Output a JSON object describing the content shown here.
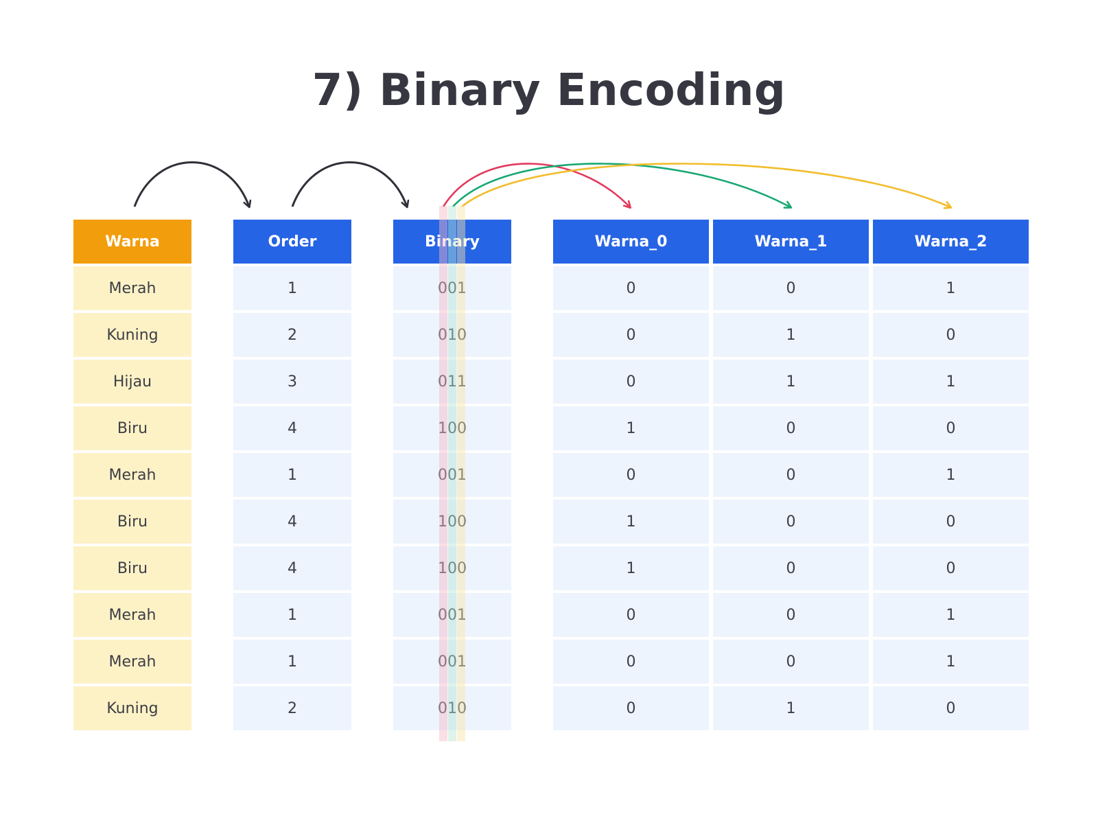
{
  "title": "7) Binary Encoding",
  "colors": {
    "warna_header": "#f29d0c",
    "warna_cells": "#fdf2c6",
    "blue_header": "#2664e6",
    "blue_cells": "#edf4fd",
    "arrow_dark": "#2f3038",
    "arrow_red": "#e23a5c",
    "arrow_green": "#19a873",
    "arrow_yellow": "#f2bd2c",
    "bit_highlight_0": "#f5b9c6",
    "bit_highlight_1": "#b9e4d2",
    "bit_highlight_2": "#f9e4a6"
  },
  "table": {
    "warna": {
      "header": "Warna",
      "values": [
        "Merah",
        "Kuning",
        "Hijau",
        "Biru",
        "Merah",
        "Biru",
        "Biru",
        "Merah",
        "Merah",
        "Kuning"
      ]
    },
    "order": {
      "header": "Order",
      "values": [
        "1",
        "2",
        "3",
        "4",
        "1",
        "4",
        "4",
        "1",
        "1",
        "2"
      ]
    },
    "binary": {
      "header": "Binary",
      "values": [
        "001",
        "010",
        "011",
        "100",
        "001",
        "100",
        "100",
        "001",
        "001",
        "010"
      ]
    },
    "warna_0": {
      "header": "Warna_0",
      "values": [
        "0",
        "0",
        "0",
        "1",
        "0",
        "1",
        "1",
        "0",
        "0",
        "0"
      ]
    },
    "warna_1": {
      "header": "Warna_1",
      "values": [
        "0",
        "1",
        "1",
        "0",
        "0",
        "0",
        "0",
        "0",
        "0",
        "1"
      ]
    },
    "warna_2": {
      "header": "Warna_2",
      "values": [
        "1",
        "0",
        "1",
        "0",
        "1",
        "0",
        "0",
        "1",
        "1",
        "0"
      ]
    }
  }
}
